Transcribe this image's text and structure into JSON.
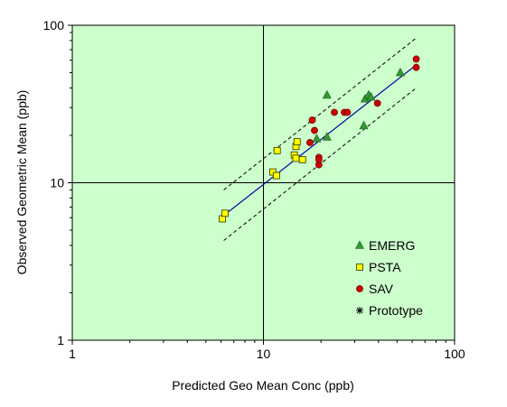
{
  "chart_data": {
    "type": "scatter",
    "title": "",
    "xlabel": "Predicted Geo Mean Conc (ppb)",
    "ylabel": "Observed Geometric Mean (ppb)",
    "xscale": "log",
    "yscale": "log",
    "xlim": [
      1,
      100
    ],
    "ylim": [
      1,
      100
    ],
    "x_ticks": [
      "1",
      "10",
      "100"
    ],
    "y_ticks": [
      "1",
      "10",
      "100"
    ],
    "reference_lines": [
      10
    ],
    "grid": false,
    "plot_background": "#ccffcc",
    "legend_position": "lower-right",
    "series": [
      {
        "name": "EMERG",
        "marker": "triangle",
        "color": "#339933",
        "points": [
          [
            19,
            19
          ],
          [
            21.5,
            19.5
          ],
          [
            21.5,
            36
          ],
          [
            33.5,
            23
          ],
          [
            34,
            34
          ],
          [
            35.5,
            36
          ],
          [
            36.5,
            35
          ],
          [
            52,
            50
          ]
        ]
      },
      {
        "name": "PSTA",
        "marker": "square",
        "color": "#ffff00",
        "points": [
          [
            6.1,
            5.9
          ],
          [
            6.3,
            6.4
          ],
          [
            11.2,
            11.7
          ],
          [
            11.7,
            11.1
          ],
          [
            11.8,
            16
          ],
          [
            14.5,
            15
          ],
          [
            14.8,
            14.3
          ],
          [
            14.8,
            17
          ],
          [
            15,
            18.2
          ],
          [
            16,
            14
          ]
        ]
      },
      {
        "name": "SAV",
        "marker": "circle",
        "color": "#cc0000",
        "points": [
          [
            17.5,
            18
          ],
          [
            18,
            25
          ],
          [
            18.5,
            21.5
          ],
          [
            19.5,
            14.5
          ],
          [
            19.5,
            14
          ],
          [
            19.5,
            13
          ],
          [
            23.5,
            28
          ],
          [
            26.5,
            28
          ],
          [
            27.5,
            28
          ],
          [
            39.5,
            32
          ],
          [
            63,
            54
          ],
          [
            63,
            61
          ]
        ]
      },
      {
        "name": "Prototype",
        "marker": "asterisk",
        "color": "#000000",
        "points": []
      }
    ],
    "fit_line": {
      "color": "#000099",
      "x": [
        6.2,
        63
      ],
      "y": [
        6.2,
        56
      ]
    },
    "band_upper": {
      "x": [
        6.2,
        63
      ],
      "y": [
        9.0,
        83
      ]
    },
    "band_lower": {
      "x": [
        6.2,
        63
      ],
      "y": [
        4.3,
        40
      ]
    }
  }
}
